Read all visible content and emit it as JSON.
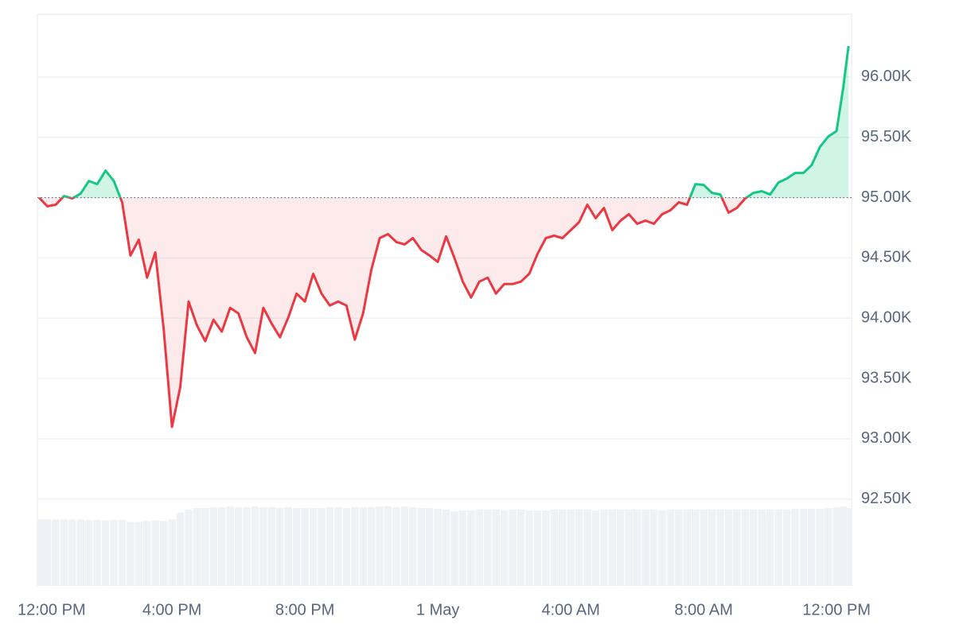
{
  "chart_data": {
    "type": "line",
    "x": [
      0,
      0.25,
      0.5,
      0.75,
      1,
      1.25,
      1.5,
      1.75,
      2,
      2.25,
      2.5,
      2.75,
      3,
      3.25,
      3.5,
      3.75,
      4,
      4.25,
      4.5,
      4.75,
      5,
      5.25,
      5.5,
      5.75,
      6,
      6.25,
      6.5,
      6.75,
      7,
      7.25,
      7.5,
      7.75,
      8,
      8.25,
      8.5,
      8.75,
      9,
      9.25,
      9.5,
      9.75,
      10,
      10.25,
      10.5,
      10.75,
      11,
      11.25,
      11.5,
      11.75,
      12,
      12.25,
      12.5,
      12.75,
      13,
      13.25,
      13.5,
      13.75,
      14,
      14.25,
      14.5,
      14.75,
      15,
      15.25,
      15.5,
      15.75,
      16,
      16.25,
      16.5,
      16.75,
      17,
      17.25,
      17.5,
      17.75,
      18,
      18.25,
      18.5,
      18.75,
      19,
      19.25,
      19.5,
      19.75,
      20,
      20.25,
      20.5,
      20.75,
      21,
      21.25,
      21.5,
      21.75,
      22,
      22.25,
      22.5,
      22.75,
      23,
      23.25,
      23.5,
      23.75,
      24,
      24.2,
      24.36
    ],
    "values": [
      95000,
      94928,
      94941,
      95013,
      94993,
      95033,
      95138,
      95112,
      95224,
      95138,
      94961,
      94520,
      94651,
      94336,
      94546,
      93908,
      93099,
      93428,
      94138,
      93941,
      93809,
      93987,
      93888,
      94086,
      94039,
      93842,
      93711,
      94086,
      93954,
      93842,
      94007,
      94204,
      94138,
      94368,
      94204,
      94105,
      94138,
      94105,
      93822,
      94039,
      94401,
      94664,
      94697,
      94632,
      94612,
      94664,
      94566,
      94520,
      94467,
      94678,
      94500,
      94303,
      94171,
      94303,
      94336,
      94204,
      94283,
      94283,
      94303,
      94368,
      94533,
      94664,
      94684,
      94664,
      94730,
      94796,
      94941,
      94829,
      94914,
      94730,
      94809,
      94862,
      94783,
      94809,
      94783,
      94862,
      94895,
      94961,
      94941,
      95112,
      95105,
      95039,
      95026,
      94875,
      94914,
      94993,
      95039,
      95053,
      95026,
      95125,
      95158,
      95204,
      95204,
      95270,
      95421,
      95507,
      95553,
      95915,
      96257
    ],
    "volume": [
      82,
      82,
      82,
      82,
      82,
      82,
      81,
      81,
      81,
      81,
      81,
      79,
      79,
      80,
      81,
      80,
      82,
      90,
      94,
      96,
      96,
      97,
      97,
      98,
      97,
      97,
      98,
      97,
      97,
      96,
      97,
      96,
      96,
      96,
      96,
      97,
      97,
      96,
      97,
      97,
      97,
      98,
      98,
      97,
      98,
      97,
      96,
      96,
      95,
      94,
      92,
      93,
      93,
      94,
      94,
      94,
      93,
      94,
      94,
      93,
      93,
      93,
      94,
      94,
      94,
      94,
      94,
      93,
      94,
      94,
      94,
      94,
      94,
      94,
      94,
      93,
      94,
      94,
      94,
      94,
      94,
      94,
      94,
      94,
      94,
      94,
      94,
      94,
      94,
      94,
      94,
      95,
      95,
      95,
      95,
      96,
      97,
      98,
      96
    ],
    "baseline": 95000,
    "up_color": "#16c784",
    "down_color": "#ea3943",
    "volume_color": "#eef1f5",
    "grid": true,
    "xlim": [
      -0.05,
      24.45
    ],
    "ylim": [
      91780,
      96520
    ],
    "xticks": [
      {
        "value": 0,
        "label": "12:00 PM"
      },
      {
        "value": 4,
        "label": "4:00 PM"
      },
      {
        "value": 8,
        "label": "8:00 PM"
      },
      {
        "value": 12,
        "label": "1 May"
      },
      {
        "value": 16,
        "label": "4:00 AM"
      },
      {
        "value": 20,
        "label": "8:00 AM"
      },
      {
        "value": 24,
        "label": "12:00 PM"
      }
    ],
    "yticks": [
      {
        "value": 92500,
        "label": "92.50K"
      },
      {
        "value": 93000,
        "label": "93.00K"
      },
      {
        "value": 93500,
        "label": "93.50K"
      },
      {
        "value": 94000,
        "label": "94.00K"
      },
      {
        "value": 94500,
        "label": "94.50K"
      },
      {
        "value": 95000,
        "label": "95.00K"
      },
      {
        "value": 95500,
        "label": "95.50K"
      },
      {
        "value": 96000,
        "label": "96.00K"
      }
    ]
  }
}
